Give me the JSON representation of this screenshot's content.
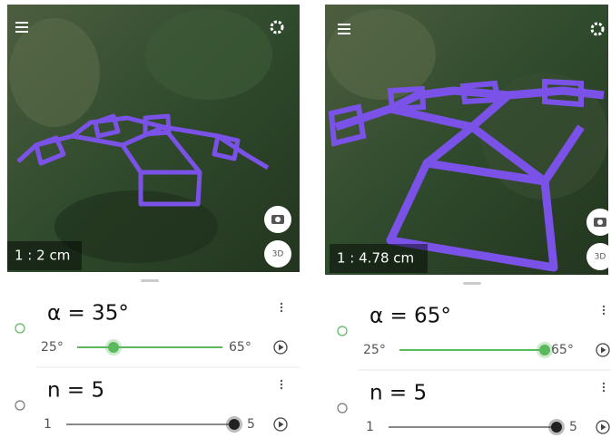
{
  "panels": [
    {
      "scale_label": "1 : 2 cm",
      "view_button": "3D",
      "sliders": [
        {
          "label": "α = 35°",
          "value": 35,
          "min": {
            "value": 25,
            "label": "25°"
          },
          "max": {
            "value": 65,
            "label": "65°"
          },
          "color": "#5cb85c"
        },
        {
          "label": "n = 5",
          "value": 5,
          "min": 1,
          "max": 5,
          "color": "#222222"
        }
      ]
    },
    {
      "scale_label": "1 : 4.78 cm",
      "view_button": "3D",
      "sliders": [
        {
          "label": "α = 65°",
          "value": 65,
          "min": {
            "value": 25,
            "label": "25°"
          },
          "max": {
            "value": 65,
            "label": "65°"
          },
          "color": "#5cb85c"
        },
        {
          "label": "n = 5",
          "value": 5,
          "min": 1,
          "max": 5,
          "color": "#222222"
        }
      ]
    }
  ]
}
